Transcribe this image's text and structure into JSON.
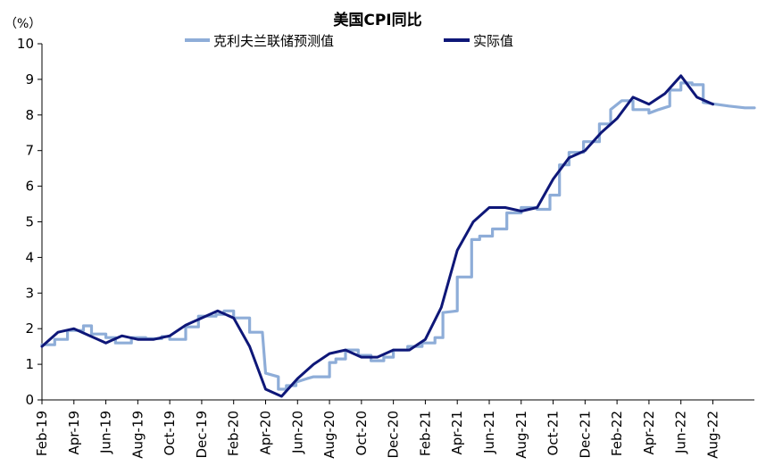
{
  "chart_data": {
    "type": "line",
    "title": "美国CPI同比",
    "ylabel": "（%）",
    "ylim": [
      0,
      10
    ],
    "yticks": [
      0,
      1,
      2,
      3,
      4,
      5,
      6,
      7,
      8,
      9,
      10
    ],
    "xlim": [
      0,
      44.6
    ],
    "grid": false,
    "legend_position": "top",
    "x_tick_labels": [
      {
        "label": "Feb-19",
        "x": 0
      },
      {
        "label": "Apr-19",
        "x": 2
      },
      {
        "label": "Jun-19",
        "x": 4
      },
      {
        "label": "Aug-19",
        "x": 6
      },
      {
        "label": "Oct-19",
        "x": 8
      },
      {
        "label": "Dec-19",
        "x": 10
      },
      {
        "label": "Feb-20",
        "x": 12
      },
      {
        "label": "Apr-20",
        "x": 14
      },
      {
        "label": "Jun-20",
        "x": 16
      },
      {
        "label": "Aug-20",
        "x": 18
      },
      {
        "label": "Oct-20",
        "x": 20
      },
      {
        "label": "Dec-20",
        "x": 22
      },
      {
        "label": "Feb-21",
        "x": 24
      },
      {
        "label": "Apr-21",
        "x": 26
      },
      {
        "label": "Jun-21",
        "x": 28
      },
      {
        "label": "Aug-21",
        "x": 30
      },
      {
        "label": "Oct-21",
        "x": 32
      },
      {
        "label": "Dec-21",
        "x": 34
      },
      {
        "label": "Feb-22",
        "x": 36
      },
      {
        "label": "Apr-22",
        "x": 38
      },
      {
        "label": "Jun-22",
        "x": 40
      },
      {
        "label": "Aug-22",
        "x": 42
      }
    ],
    "series": [
      {
        "name": "克利夫兰联储预测值",
        "color": "#8eadd8",
        "style": "stepped",
        "points": [
          [
            0,
            1.55
          ],
          [
            0.8,
            1.55
          ],
          [
            0.8,
            1.7
          ],
          [
            1.6,
            1.7
          ],
          [
            1.6,
            1.95
          ],
          [
            2.6,
            1.95
          ],
          [
            2.6,
            2.08
          ],
          [
            3.1,
            2.08
          ],
          [
            3.1,
            1.85
          ],
          [
            4.0,
            1.85
          ],
          [
            4.0,
            1.75
          ],
          [
            4.6,
            1.75
          ],
          [
            4.6,
            1.6
          ],
          [
            5.6,
            1.6
          ],
          [
            5.6,
            1.75
          ],
          [
            6.5,
            1.75
          ],
          [
            6.5,
            1.72
          ],
          [
            7.5,
            1.72
          ],
          [
            7.5,
            1.78
          ],
          [
            8.0,
            1.78
          ],
          [
            8.0,
            1.7
          ],
          [
            9.0,
            1.7
          ],
          [
            9.0,
            2.05
          ],
          [
            9.8,
            2.05
          ],
          [
            9.8,
            2.35
          ],
          [
            10.9,
            2.35
          ],
          [
            10.9,
            2.4
          ],
          [
            11.4,
            2.4
          ],
          [
            11.4,
            2.5
          ],
          [
            12.0,
            2.5
          ],
          [
            12.0,
            2.3
          ],
          [
            13.0,
            2.3
          ],
          [
            13.0,
            1.9
          ],
          [
            13.8,
            1.9
          ],
          [
            14.0,
            0.75
          ],
          [
            14.8,
            0.65
          ],
          [
            14.8,
            0.3
          ],
          [
            15.3,
            0.3
          ],
          [
            15.3,
            0.4
          ],
          [
            15.9,
            0.4
          ],
          [
            15.9,
            0.5
          ],
          [
            16.6,
            0.6
          ],
          [
            17.0,
            0.65
          ],
          [
            18.0,
            0.65
          ],
          [
            18.0,
            1.05
          ],
          [
            18.4,
            1.05
          ],
          [
            18.4,
            1.15
          ],
          [
            19.0,
            1.15
          ],
          [
            19.0,
            1.4
          ],
          [
            19.8,
            1.4
          ],
          [
            19.8,
            1.25
          ],
          [
            20.6,
            1.25
          ],
          [
            20.6,
            1.1
          ],
          [
            21.4,
            1.1
          ],
          [
            21.4,
            1.2
          ],
          [
            22.0,
            1.2
          ],
          [
            22.0,
            1.4
          ],
          [
            22.9,
            1.4
          ],
          [
            22.9,
            1.5
          ],
          [
            23.8,
            1.5
          ],
          [
            23.8,
            1.6
          ],
          [
            24.6,
            1.6
          ],
          [
            24.6,
            1.75
          ],
          [
            25.1,
            1.75
          ],
          [
            25.1,
            2.45
          ],
          [
            26.0,
            2.5
          ],
          [
            26.0,
            3.45
          ],
          [
            26.9,
            3.45
          ],
          [
            26.9,
            4.5
          ],
          [
            27.4,
            4.5
          ],
          [
            27.4,
            4.6
          ],
          [
            28.2,
            4.6
          ],
          [
            28.2,
            4.8
          ],
          [
            29.1,
            4.8
          ],
          [
            29.1,
            5.25
          ],
          [
            30.0,
            5.25
          ],
          [
            30.0,
            5.4
          ],
          [
            31.0,
            5.4
          ],
          [
            31.0,
            5.35
          ],
          [
            31.8,
            5.35
          ],
          [
            31.8,
            5.75
          ],
          [
            32.4,
            5.75
          ],
          [
            32.4,
            6.6
          ],
          [
            33.0,
            6.6
          ],
          [
            33.0,
            6.95
          ],
          [
            33.9,
            6.95
          ],
          [
            33.9,
            7.25
          ],
          [
            34.9,
            7.25
          ],
          [
            34.9,
            7.75
          ],
          [
            35.6,
            7.75
          ],
          [
            35.6,
            8.15
          ],
          [
            36.3,
            8.4
          ],
          [
            37.0,
            8.4
          ],
          [
            37.0,
            8.15
          ],
          [
            38.0,
            8.15
          ],
          [
            38.0,
            8.05
          ],
          [
            38.6,
            8.15
          ],
          [
            39.3,
            8.25
          ],
          [
            39.3,
            8.7
          ],
          [
            40.0,
            8.7
          ],
          [
            40.0,
            8.9
          ],
          [
            40.7,
            8.9
          ],
          [
            40.7,
            8.85
          ],
          [
            41.4,
            8.85
          ],
          [
            41.4,
            8.35
          ],
          [
            42.2,
            8.3
          ],
          [
            43.0,
            8.25
          ],
          [
            44.0,
            8.2
          ],
          [
            44.6,
            8.2
          ]
        ]
      },
      {
        "name": "实际值",
        "color": "#0e1778",
        "style": "line",
        "points": [
          [
            0,
            1.5
          ],
          [
            1,
            1.9
          ],
          [
            2,
            2.0
          ],
          [
            3,
            1.8
          ],
          [
            4,
            1.6
          ],
          [
            5,
            1.8
          ],
          [
            6,
            1.7
          ],
          [
            7,
            1.7
          ],
          [
            8,
            1.8
          ],
          [
            9,
            2.1
          ],
          [
            10,
            2.3
          ],
          [
            11,
            2.5
          ],
          [
            12,
            2.3
          ],
          [
            13,
            1.5
          ],
          [
            14,
            0.3
          ],
          [
            15,
            0.1
          ],
          [
            16,
            0.6
          ],
          [
            17,
            1.0
          ],
          [
            18,
            1.3
          ],
          [
            19,
            1.4
          ],
          [
            20,
            1.2
          ],
          [
            21,
            1.2
          ],
          [
            22,
            1.4
          ],
          [
            23,
            1.4
          ],
          [
            24,
            1.7
          ],
          [
            25,
            2.6
          ],
          [
            26,
            4.2
          ],
          [
            27,
            5.0
          ],
          [
            28,
            5.4
          ],
          [
            29,
            5.4
          ],
          [
            30,
            5.3
          ],
          [
            31,
            5.4
          ],
          [
            32,
            6.2
          ],
          [
            33,
            6.8
          ],
          [
            34,
            7.0
          ],
          [
            35,
            7.5
          ],
          [
            36,
            7.9
          ],
          [
            37,
            8.5
          ],
          [
            38,
            8.3
          ],
          [
            39,
            8.6
          ],
          [
            40,
            9.1
          ],
          [
            41,
            8.5
          ],
          [
            42,
            8.3
          ]
        ]
      }
    ]
  }
}
